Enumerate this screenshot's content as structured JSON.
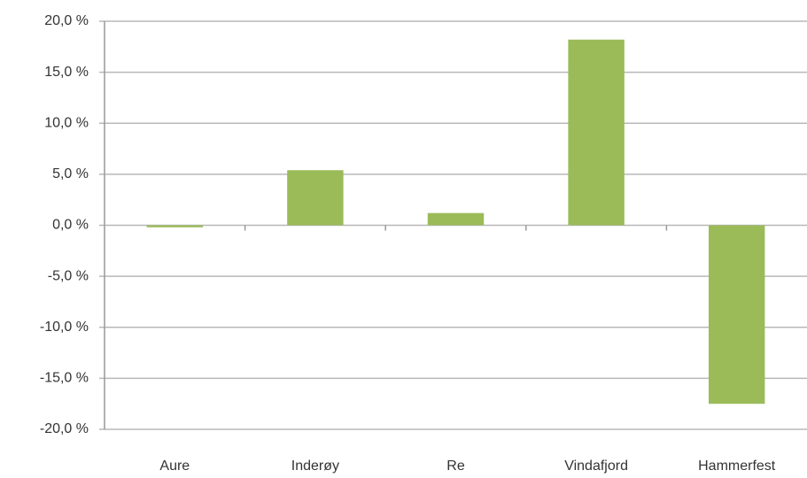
{
  "chart_data": {
    "type": "bar",
    "categories": [
      "Aure",
      "Inderøy",
      "Re",
      "Vindafjord",
      "Hammerfest"
    ],
    "values": [
      -0.2,
      5.4,
      1.2,
      18.2,
      -17.5
    ],
    "color": "#9bbb59",
    "ylim": [
      -20,
      20
    ],
    "yticks": [
      {
        "value": -20,
        "label": "-20,0 %"
      },
      {
        "value": -15,
        "label": "-15,0 %"
      },
      {
        "value": -10,
        "label": "-10,0 %"
      },
      {
        "value": -5,
        "label": "-5,0 %"
      },
      {
        "value": 0,
        "label": "0,0 %"
      },
      {
        "value": 5,
        "label": "5,0 %"
      },
      {
        "value": 10,
        "label": "10,0 %"
      },
      {
        "value": 15,
        "label": "15,0 %"
      },
      {
        "value": 20,
        "label": "20,0 %"
      }
    ],
    "grid": true
  }
}
